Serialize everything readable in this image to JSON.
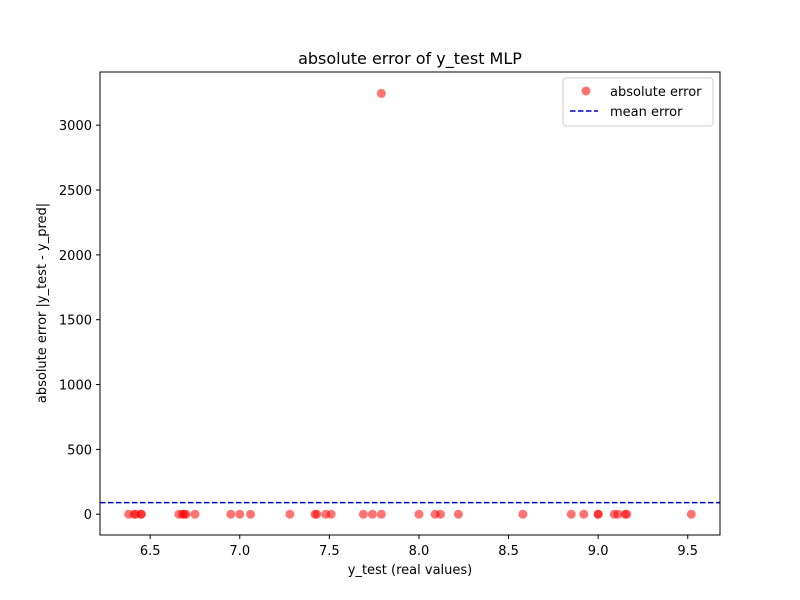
{
  "chart_data": {
    "type": "scatter",
    "title": "absolute error of y_test MLP",
    "xlabel": "y_test (real values)",
    "ylabel": "absolute error |y_test - y_pred|",
    "xlim": [
      6.22,
      9.68
    ],
    "ylim": [
      -160,
      3410
    ],
    "x_ticks": [
      6.5,
      7.0,
      7.5,
      8.0,
      8.5,
      9.0,
      9.5
    ],
    "x_tick_labels": [
      "6.5",
      "7.0",
      "7.5",
      "8.0",
      "8.5",
      "9.0",
      "9.5"
    ],
    "y_ticks": [
      0,
      500,
      1000,
      1500,
      2000,
      2500,
      3000
    ],
    "y_tick_labels": [
      "0",
      "500",
      "1000",
      "1500",
      "2000",
      "2500",
      "3000"
    ],
    "grid": false,
    "legend_position": "top-right",
    "series": [
      {
        "name": "absolute error",
        "kind": "scatter",
        "color": "#ff0000",
        "alpha": 0.55,
        "points": [
          [
            6.38,
            0
          ],
          [
            6.41,
            0
          ],
          [
            6.42,
            0
          ],
          [
            6.45,
            0
          ],
          [
            6.45,
            0
          ],
          [
            6.66,
            0
          ],
          [
            6.68,
            0
          ],
          [
            6.69,
            0
          ],
          [
            6.7,
            0
          ],
          [
            6.75,
            0
          ],
          [
            6.95,
            0
          ],
          [
            7.0,
            0
          ],
          [
            7.06,
            0
          ],
          [
            7.28,
            0
          ],
          [
            7.42,
            0
          ],
          [
            7.43,
            0
          ],
          [
            7.48,
            0
          ],
          [
            7.51,
            0
          ],
          [
            7.69,
            0
          ],
          [
            7.74,
            0
          ],
          [
            7.79,
            0
          ],
          [
            7.79,
            3245
          ],
          [
            8.0,
            0
          ],
          [
            8.09,
            0
          ],
          [
            8.12,
            0
          ],
          [
            8.22,
            0
          ],
          [
            8.58,
            0
          ],
          [
            8.85,
            0
          ],
          [
            8.92,
            0
          ],
          [
            9.0,
            0
          ],
          [
            9.0,
            0
          ],
          [
            9.09,
            0
          ],
          [
            9.11,
            0
          ],
          [
            9.15,
            0
          ],
          [
            9.16,
            0
          ],
          [
            9.52,
            0
          ]
        ]
      },
      {
        "name": "mean error",
        "kind": "hline",
        "color": "#0000cc",
        "style": "dashed",
        "y": 90
      }
    ]
  }
}
